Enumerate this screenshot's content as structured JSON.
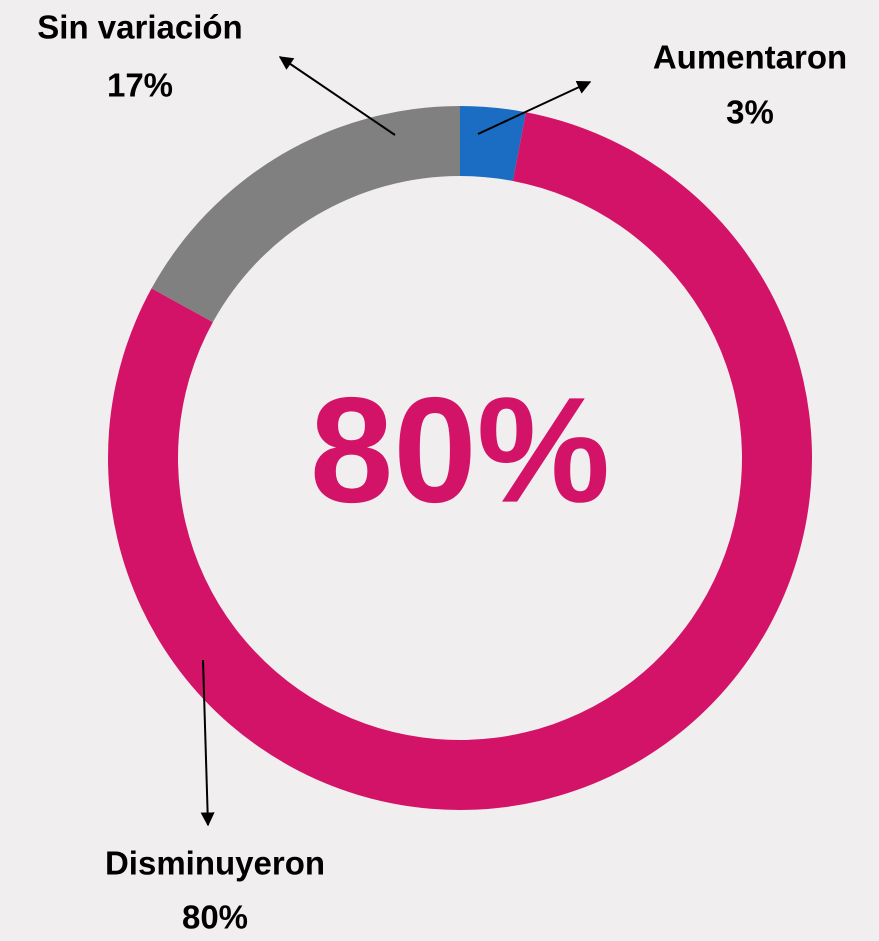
{
  "chart_data": {
    "type": "donut",
    "categories": [
      "Aumentaron",
      "Disminuyeron",
      "Sin variación"
    ],
    "values": [
      3,
      80,
      17
    ],
    "value_labels": [
      "3%",
      "80%",
      "17%"
    ],
    "colors": [
      "#1a6dc2",
      "#d31367",
      "#808080"
    ],
    "center_label": "80%"
  }
}
